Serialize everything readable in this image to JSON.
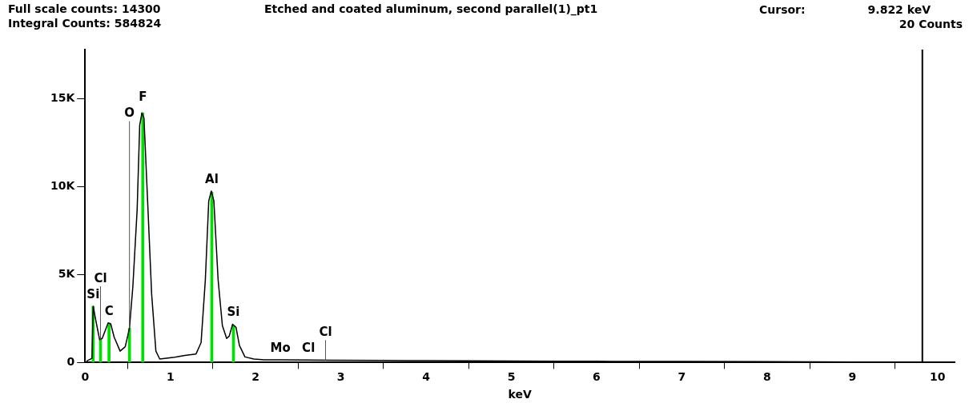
{
  "chart_data": {
    "type": "line",
    "title": "Etched and coated aluminum, second parallel(1)_pt1",
    "xlabel": "keV",
    "xlim": [
      0,
      10.2
    ],
    "xticks": [
      0,
      1,
      2,
      3,
      4,
      5,
      6,
      7,
      8,
      9,
      10
    ],
    "ylim": [
      0,
      17800
    ],
    "yticks": [
      {
        "value": 0,
        "label": "0"
      },
      {
        "value": 5000,
        "label": "5K"
      },
      {
        "value": 10000,
        "label": "10K"
      },
      {
        "value": 15000,
        "label": "15K"
      }
    ],
    "grid": false,
    "legend": false,
    "marker": "none",
    "line_style": "solid",
    "series": [
      {
        "color": "#000000",
        "x": [
          0.016,
          0.08,
          0.094,
          0.125,
          0.17,
          0.2,
          0.27,
          0.3,
          0.34,
          0.41,
          0.47,
          0.52,
          0.56,
          0.61,
          0.64,
          0.666,
          0.69,
          0.73,
          0.78,
          0.83,
          0.875,
          1.05,
          1.17,
          1.3,
          1.36,
          1.41,
          1.45,
          1.48,
          1.51,
          1.56,
          1.61,
          1.66,
          1.69,
          1.73,
          1.77,
          1.81,
          1.875,
          1.98,
          2.1,
          2.3,
          2.6,
          2.9,
          3.5,
          4,
          4.5,
          5,
          5.5,
          6,
          7,
          8,
          8.5,
          9,
          9.1
        ],
        "values": [
          80,
          240,
          3200,
          2400,
          1300,
          1370,
          2260,
          2200,
          1450,
          650,
          900,
          1950,
          4350,
          8700,
          13500,
          14200,
          13900,
          9500,
          3900,
          650,
          200,
          300,
          400,
          480,
          1130,
          4700,
          9200,
          9750,
          9200,
          4700,
          2100,
          1370,
          1500,
          2180,
          2000,
          970,
          320,
          200,
          160,
          150,
          140,
          130,
          120,
          110,
          100,
          90,
          80,
          70,
          60,
          50,
          40,
          30,
          0
        ]
      },
      {
        "type": "bar",
        "color": "#00e000",
        "x": [
          0.094,
          0.18,
          0.28,
          0.52,
          0.676,
          1.486,
          1.74
        ],
        "values": [
          3200,
          1300,
          2200,
          1950,
          14200,
          9700,
          2100
        ]
      }
    ],
    "annotations": [
      "Full scale counts: 14300",
      "Integral Counts: 584824",
      "Cursor:",
      "9.822 keV",
      "20 Counts",
      {
        "text": "Si",
        "x": 0.094,
        "y": 3200
      },
      {
        "text": "Cl",
        "x": 0.18,
        "y": 1300
      },
      {
        "text": "C",
        "x": 0.28,
        "y": 2200
      },
      {
        "text": "O",
        "x": 0.52,
        "y": 1950
      },
      {
        "text": "F",
        "x": 0.676,
        "y": 14200
      },
      {
        "text": "Al",
        "x": 1.486,
        "y": 9700
      },
      {
        "text": "Si",
        "x": 1.74,
        "y": 2100
      },
      {
        "text": "Mo",
        "x": 2.29,
        "y": 150
      },
      {
        "text": "Cl",
        "x": 2.62,
        "y": 140
      },
      {
        "text": "Cl",
        "x": 2.82,
        "y": 130
      }
    ],
    "ref_lines": [
      {
        "axis": "x",
        "value": 9.822,
        "color": "#000000"
      }
    ]
  }
}
